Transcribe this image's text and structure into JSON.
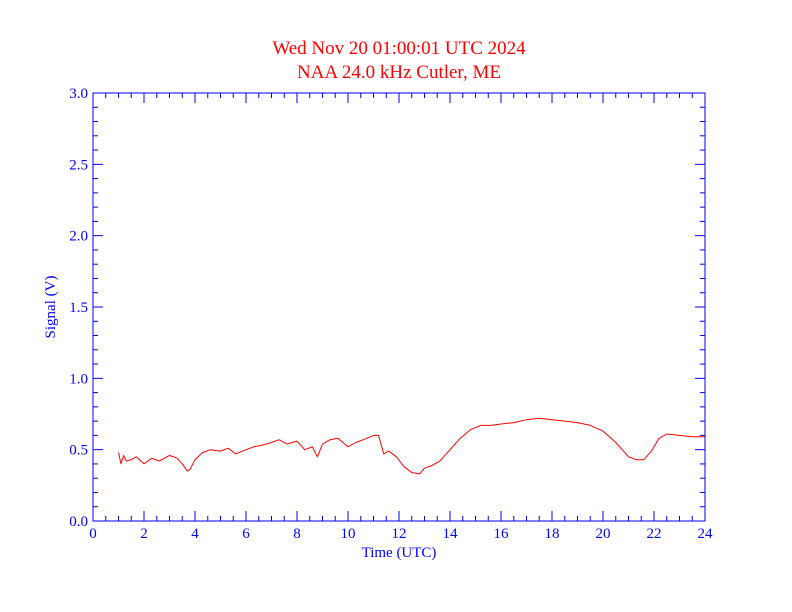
{
  "chart_data": {
    "type": "line",
    "title": "Wed Nov 20 01:00:01 UTC 2024",
    "subtitle": "NAA 24.0 kHz Cutler, ME",
    "xlabel": "Time (UTC)",
    "ylabel": "Signal (V)",
    "xlim": [
      0,
      24
    ],
    "ylim": [
      0,
      3.0
    ],
    "x_ticks": [
      "0",
      "2",
      "4",
      "6",
      "8",
      "10",
      "12",
      "14",
      "16",
      "18",
      "20",
      "22",
      "24"
    ],
    "y_ticks": [
      "0.0",
      "0.5",
      "1.0",
      "1.5",
      "2.0",
      "2.5",
      "3.0"
    ],
    "grid": false,
    "colors": {
      "axes": "#0000ff",
      "line": "#ff0000",
      "title": "#ff0000"
    },
    "series": [
      {
        "x": [
          1.0,
          1.1,
          1.2,
          1.3,
          1.5,
          1.7,
          2.0,
          2.3,
          2.6,
          3.0,
          3.3,
          3.5,
          3.7,
          3.8,
          4.0,
          4.3,
          4.6,
          5.0,
          5.3,
          5.6,
          6.0,
          6.3,
          6.6,
          7.0,
          7.3,
          7.6,
          8.0,
          8.3,
          8.6,
          8.8,
          9.0,
          9.3,
          9.6,
          10.0,
          10.3,
          10.6,
          11.0,
          11.2,
          11.4,
          11.6,
          11.9,
          12.2,
          12.5,
          12.8,
          13.0,
          13.3,
          13.6,
          14.0,
          14.4,
          14.8,
          15.2,
          15.6,
          16.0,
          16.5,
          17.0,
          17.5,
          18.0,
          18.5,
          19.0,
          19.5,
          20.0,
          20.5,
          20.8,
          21.0,
          21.3,
          21.6,
          21.9,
          22.2,
          22.5,
          23.0,
          23.5,
          24.0
        ],
        "values": [
          0.48,
          0.4,
          0.46,
          0.42,
          0.43,
          0.45,
          0.4,
          0.44,
          0.42,
          0.46,
          0.44,
          0.4,
          0.35,
          0.36,
          0.43,
          0.48,
          0.5,
          0.49,
          0.51,
          0.47,
          0.5,
          0.52,
          0.53,
          0.55,
          0.57,
          0.54,
          0.56,
          0.5,
          0.52,
          0.45,
          0.54,
          0.57,
          0.58,
          0.52,
          0.55,
          0.57,
          0.6,
          0.6,
          0.47,
          0.49,
          0.45,
          0.38,
          0.34,
          0.33,
          0.37,
          0.39,
          0.42,
          0.5,
          0.58,
          0.64,
          0.67,
          0.67,
          0.68,
          0.69,
          0.71,
          0.72,
          0.71,
          0.7,
          0.69,
          0.67,
          0.63,
          0.55,
          0.49,
          0.45,
          0.43,
          0.43,
          0.49,
          0.58,
          0.61,
          0.6,
          0.59,
          0.59
        ]
      }
    ]
  }
}
